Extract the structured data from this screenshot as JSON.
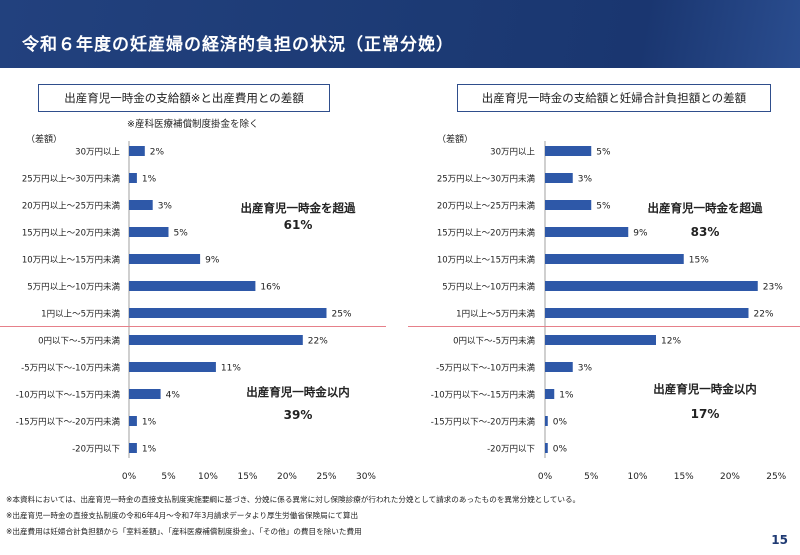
{
  "header": {
    "title": "令和６年度の妊産婦の経済的負担の状況（正常分娩）"
  },
  "colors": {
    "bar": "#2e58a8",
    "divider": "#e6808a",
    "axis": "#888888",
    "header": "#1c3a74"
  },
  "chart_data": [
    {
      "type": "bar",
      "orientation": "horizontal",
      "title": "出産育児一時金の支給額※と出産費用との差額",
      "note": "※産科医療補償制度掛金を除く",
      "ylabel": "（差額）",
      "categories": [
        "30万円以上",
        "25万円以上～30万円未満",
        "20万円以上～25万円未満",
        "15万円以上～20万円未満",
        "10万円以上～15万円未満",
        "5万円以上～10万円未満",
        "1円以上～5万円未満",
        "0円以下～-5万円未満",
        "-5万円以下～-10万円未満",
        "-10万円以下～-15万円未満",
        "-15万円以下～-20万円未満",
        "-20万円以下"
      ],
      "values": [
        2,
        1,
        3,
        5,
        9,
        16,
        25,
        22,
        11,
        4,
        1,
        1
      ],
      "value_labels": [
        "2%",
        "1%",
        "3%",
        "5%",
        "9%",
        "16%",
        "25%",
        "22%",
        "11%",
        "4%",
        "1%",
        "1%"
      ],
      "xlim": [
        0,
        30
      ],
      "xticks": [
        "0%",
        "5%",
        "10%",
        "15%",
        "20%",
        "25%",
        "30%"
      ],
      "annotations": [
        {
          "label": "出産育児一時金を超過",
          "value": "61%"
        },
        {
          "label": "出産育児一時金以内",
          "value": "39%"
        }
      ]
    },
    {
      "type": "bar",
      "orientation": "horizontal",
      "title": "出産育児一時金の支給額と妊婦合計負担額との差額",
      "ylabel": "（差額）",
      "categories": [
        "30万円以上",
        "25万円以上～30万円未満",
        "20万円以上～25万円未満",
        "15万円以上～20万円未満",
        "10万円以上～15万円未満",
        "5万円以上～10万円未満",
        "1円以上～5万円未満",
        "0円以下～-5万円未満",
        "-5万円以下～-10万円未満",
        "-10万円以下～-15万円未満",
        "-15万円以下～-20万円未満",
        "-20万円以下"
      ],
      "values": [
        5,
        3,
        5,
        9,
        15,
        23,
        22,
        12,
        3,
        1,
        0.3,
        0.3
      ],
      "value_labels": [
        "5%",
        "3%",
        "5%",
        "9%",
        "15%",
        "23%",
        "22%",
        "12%",
        "3%",
        "1%",
        "0%",
        "0%"
      ],
      "xlim": [
        0,
        25
      ],
      "xticks": [
        "0%",
        "5%",
        "10%",
        "15%",
        "20%",
        "25%"
      ],
      "annotations": [
        {
          "label": "出産育児一時金を超過",
          "value": "83%"
        },
        {
          "label": "出産育児一時金以内",
          "value": "17%"
        }
      ]
    }
  ],
  "footnotes": [
    "※本資料においては、出産育児一時金の直接支払制度実施要綱に基づき、分娩に係る異常に対し保険診療が行われた分娩として請求のあったものを異常分娩としている。",
    "※出産育児一時金の直接支払制度の令和6年4月～令和7年3月請求データより厚生労働省保険局にて算出",
    "※出産費用は妊婦合計負担額から「室料差額」、「産科医療補償制度掛金」、「その他」の費目を除いた費用"
  ],
  "page_number": "15"
}
